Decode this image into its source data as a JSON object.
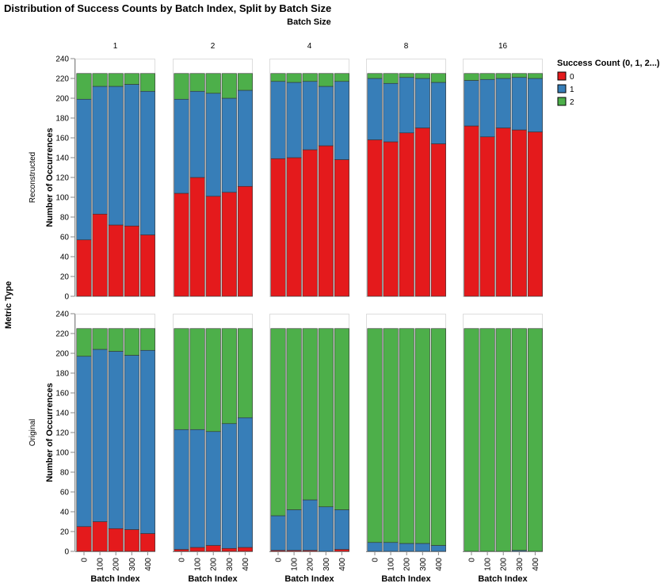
{
  "chart_data": {
    "type": "bar",
    "stacked": true,
    "title": "Distribution of Success Counts by Batch Index, Split by Batch Size",
    "column_facet_title": "Batch Size",
    "row_facet_title": "Metric Type",
    "columns": [
      "1",
      "2",
      "4",
      "8",
      "16"
    ],
    "rows": [
      "Reconstructed",
      "Original"
    ],
    "xlabel": "Batch Index",
    "ylabel": "Number of Occurrences",
    "categories": [
      "0",
      "100",
      "200",
      "300",
      "400"
    ],
    "ylim": [
      0,
      240
    ],
    "yticks": [
      0,
      20,
      40,
      60,
      80,
      100,
      120,
      140,
      160,
      180,
      200,
      220,
      240
    ],
    "grid": false,
    "legend": {
      "title": "Success Count (0, 1, 2...)",
      "placement": "top-right",
      "entries": [
        {
          "label": "0",
          "color": "#e41a1c"
        },
        {
          "label": "1",
          "color": "#377eb8"
        },
        {
          "label": "2",
          "color": "#4daf4a"
        }
      ]
    },
    "panels": [
      {
        "row": "Reconstructed",
        "column": "1",
        "stack": [
          [
            57,
            142,
            26
          ],
          [
            83,
            129,
            13
          ],
          [
            72,
            140,
            13
          ],
          [
            71,
            143,
            11
          ],
          [
            62,
            145,
            18
          ]
        ]
      },
      {
        "row": "Reconstructed",
        "column": "2",
        "stack": [
          [
            104,
            95,
            26
          ],
          [
            120,
            87,
            18
          ],
          [
            101,
            104,
            20
          ],
          [
            105,
            95,
            25
          ],
          [
            111,
            97,
            17
          ]
        ]
      },
      {
        "row": "Reconstructed",
        "column": "4",
        "stack": [
          [
            139,
            78,
            8
          ],
          [
            140,
            76,
            9
          ],
          [
            148,
            69,
            8
          ],
          [
            152,
            60,
            13
          ],
          [
            138,
            79,
            8
          ]
        ]
      },
      {
        "row": "Reconstructed",
        "column": "8",
        "stack": [
          [
            158,
            62,
            5
          ],
          [
            156,
            59,
            10
          ],
          [
            165,
            56,
            4
          ],
          [
            170,
            50,
            5
          ],
          [
            154,
            62,
            9
          ]
        ]
      },
      {
        "row": "Reconstructed",
        "column": "16",
        "stack": [
          [
            172,
            46,
            7
          ],
          [
            161,
            58,
            6
          ],
          [
            170,
            50,
            5
          ],
          [
            168,
            53,
            4
          ],
          [
            166,
            54,
            5
          ]
        ]
      },
      {
        "row": "Original",
        "column": "1",
        "stack": [
          [
            25,
            172,
            28
          ],
          [
            30,
            174,
            21
          ],
          [
            23,
            179,
            23
          ],
          [
            22,
            176,
            27
          ],
          [
            18,
            185,
            22
          ]
        ]
      },
      {
        "row": "Original",
        "column": "2",
        "stack": [
          [
            2,
            121,
            102
          ],
          [
            4,
            119,
            102
          ],
          [
            6,
            115,
            104
          ],
          [
            3,
            126,
            96
          ],
          [
            4,
            131,
            90
          ]
        ]
      },
      {
        "row": "Original",
        "column": "4",
        "stack": [
          [
            1,
            35,
            189
          ],
          [
            1,
            41,
            183
          ],
          [
            1,
            51,
            173
          ],
          [
            0,
            45,
            180
          ],
          [
            2,
            40,
            183
          ]
        ]
      },
      {
        "row": "Original",
        "column": "8",
        "stack": [
          [
            0,
            9,
            216
          ],
          [
            0,
            9,
            216
          ],
          [
            0,
            8,
            217
          ],
          [
            0,
            8,
            217
          ],
          [
            0,
            6,
            219
          ]
        ]
      },
      {
        "row": "Original",
        "column": "16",
        "stack": [
          [
            0,
            0,
            225
          ],
          [
            0,
            0,
            225
          ],
          [
            0,
            0,
            225
          ],
          [
            0,
            1,
            224
          ],
          [
            0,
            0,
            225
          ]
        ]
      }
    ]
  }
}
